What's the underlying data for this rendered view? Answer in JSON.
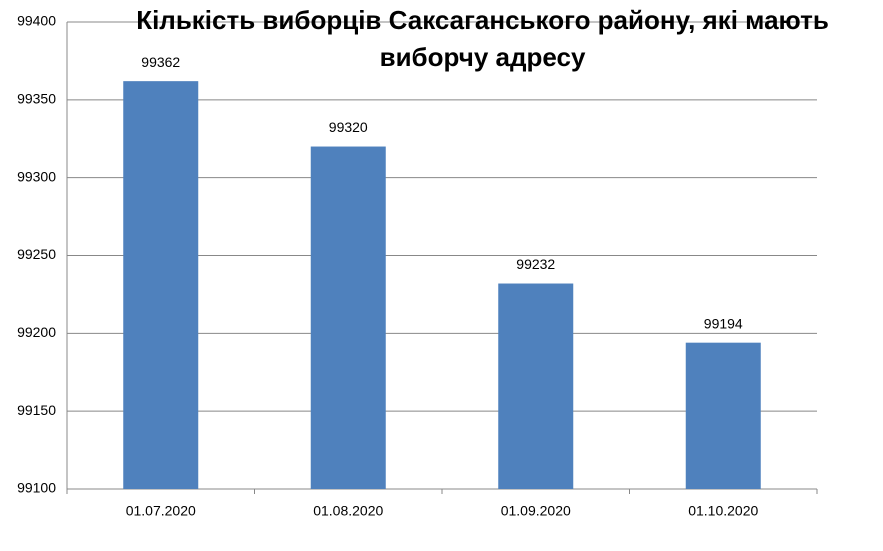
{
  "chart_data": {
    "type": "bar",
    "title": "Кількість виборців Саксаганського району, які мають виборчу адресу",
    "categories": [
      "01.07.2020",
      "01.08.2020",
      "01.09.2020",
      "01.10.2020"
    ],
    "values": [
      99362,
      99320,
      99232,
      99194
    ],
    "color": "#4f81bd",
    "ylim": [
      99100,
      99400
    ],
    "yticks": [
      99100,
      99150,
      99200,
      99250,
      99300,
      99350,
      99400
    ],
    "grid": true
  }
}
